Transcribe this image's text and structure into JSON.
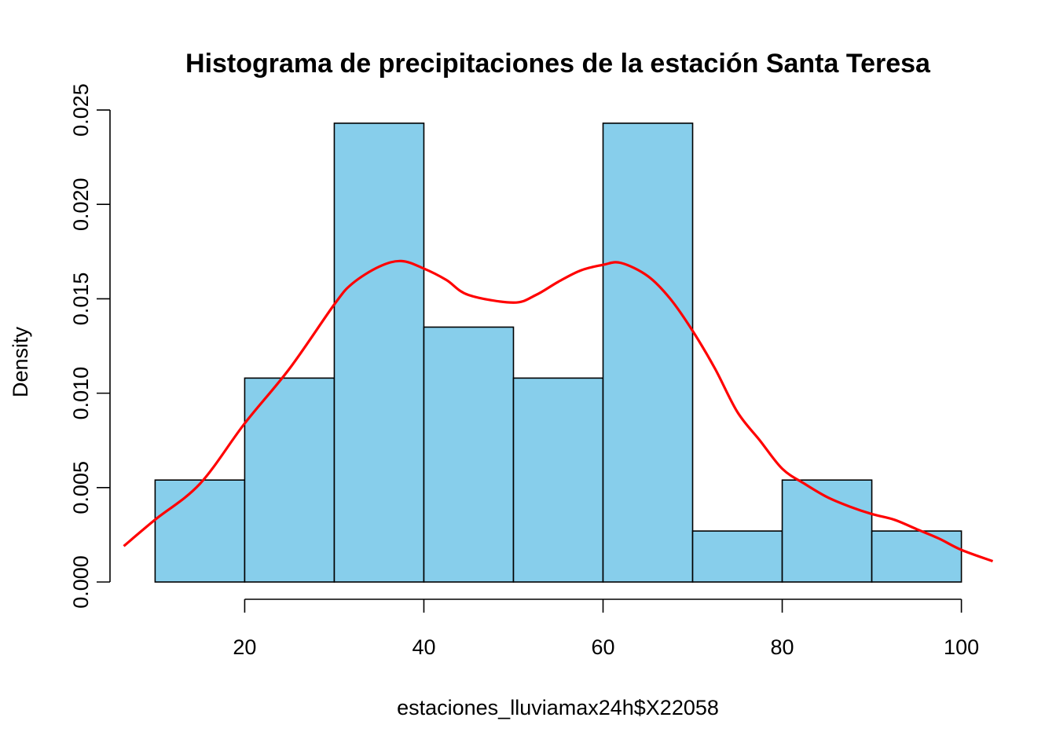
{
  "chart_data": {
    "type": "bar",
    "title": "Histograma de precipitaciones de  la estación Santa Teresa",
    "xlabel": "estaciones_lluviamax24h$X22058",
    "ylabel": "Density",
    "bins": [
      {
        "from": 10,
        "to": 20,
        "density": 0.0054
      },
      {
        "from": 20,
        "to": 30,
        "density": 0.0108
      },
      {
        "from": 30,
        "to": 40,
        "density": 0.0243
      },
      {
        "from": 40,
        "to": 50,
        "density": 0.0135
      },
      {
        "from": 50,
        "to": 60,
        "density": 0.0108
      },
      {
        "from": 60,
        "to": 70,
        "density": 0.0243
      },
      {
        "from": 70,
        "to": 80,
        "density": 0.0027
      },
      {
        "from": 80,
        "to": 90,
        "density": 0.0054
      },
      {
        "from": 90,
        "to": 100,
        "density": 0.0027
      }
    ],
    "bar_color": "#87CEEB",
    "density_curve": {
      "color": "#FF0000",
      "points": [
        [
          6.5,
          0.0019
        ],
        [
          10,
          0.0033
        ],
        [
          15,
          0.0052
        ],
        [
          20,
          0.0084
        ],
        [
          25,
          0.0113
        ],
        [
          30,
          0.0147
        ],
        [
          32,
          0.0158
        ],
        [
          35,
          0.0167
        ],
        [
          37.5,
          0.017
        ],
        [
          40,
          0.0166
        ],
        [
          42.5,
          0.016
        ],
        [
          45,
          0.0152
        ],
        [
          50,
          0.0148
        ],
        [
          52.5,
          0.0152
        ],
        [
          55,
          0.0159
        ],
        [
          57.5,
          0.0165
        ],
        [
          60,
          0.0168
        ],
        [
          62,
          0.0169
        ],
        [
          65,
          0.0162
        ],
        [
          67.5,
          0.015
        ],
        [
          70,
          0.0133
        ],
        [
          72.5,
          0.0113
        ],
        [
          75,
          0.009
        ],
        [
          77.5,
          0.0075
        ],
        [
          80,
          0.006
        ],
        [
          82.5,
          0.0052
        ],
        [
          85,
          0.0045
        ],
        [
          87.5,
          0.004
        ],
        [
          90,
          0.0036
        ],
        [
          92.5,
          0.0033
        ],
        [
          95,
          0.0028
        ],
        [
          97.5,
          0.0023
        ],
        [
          100,
          0.0017
        ],
        [
          103.5,
          0.0011
        ]
      ]
    },
    "xlim": [
      6.5,
      103.5
    ],
    "ylim": [
      0,
      0.026
    ],
    "x_ticks": [
      "20",
      "40",
      "60",
      "80",
      "100"
    ],
    "y_ticks": [
      "0.000",
      "0.005",
      "0.010",
      "0.015",
      "0.020",
      "0.025"
    ]
  }
}
